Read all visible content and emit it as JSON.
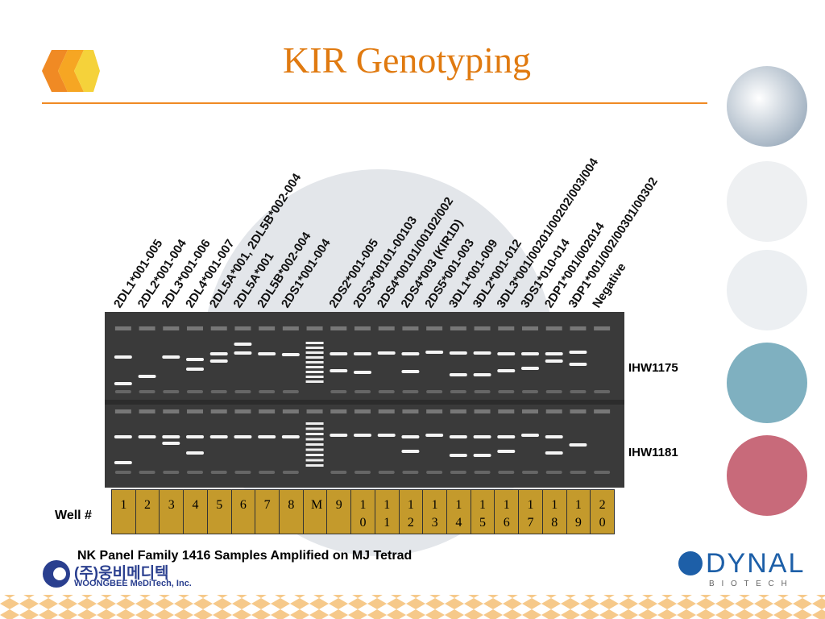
{
  "title": "KIR Genotyping",
  "well_header": "Well #",
  "lanes": [
    {
      "well": "1",
      "label": "2DL1*001-005"
    },
    {
      "well": "2",
      "label": "2DL2*001-004"
    },
    {
      "well": "3",
      "label": "2DL3*001-006"
    },
    {
      "well": "4",
      "label": "2DL4*001-007"
    },
    {
      "well": "5",
      "label": "2DL5A*001, 2DL5B*002-004"
    },
    {
      "well": "6",
      "label": "2DL5A*001"
    },
    {
      "well": "7",
      "label": "2DL5B*002-004"
    },
    {
      "well": "8",
      "label": "2DS1*001-004"
    },
    {
      "well": "M",
      "label": null
    },
    {
      "well": "9",
      "label": "2DS2*001-005"
    },
    {
      "well": "10",
      "label": "2DS3*00101-00103"
    },
    {
      "well": "11",
      "label": "2DS4*00101/00102/002"
    },
    {
      "well": "12",
      "label": "2DS4*003 (KIR1D)"
    },
    {
      "well": "13",
      "label": "2DS5*001-003"
    },
    {
      "well": "14",
      "label": "3DL1*001-009"
    },
    {
      "well": "15",
      "label": "3DL2*001-012"
    },
    {
      "well": "16",
      "label": "3DL3*001/00201/00202/003/004"
    },
    {
      "well": "17",
      "label": "3DS1*010-014"
    },
    {
      "well": "18",
      "label": "2DP1*001/002014"
    },
    {
      "well": "19",
      "label": "3DP1*001/002/00301/00302"
    },
    {
      "well": "20",
      "label": "Negative"
    }
  ],
  "samples": [
    "IHW1175",
    "IHW1181"
  ],
  "caption": "NK Panel Family 1416 Samples Amplified on  MJ Tetrad",
  "logos": {
    "woongbee_korean": "(주)웅비메디텍",
    "woongbee_english": "WOONGBEE MeDiTech, Inc.",
    "dynal": "DYNAL",
    "biotech": "B I O T E C H"
  }
}
